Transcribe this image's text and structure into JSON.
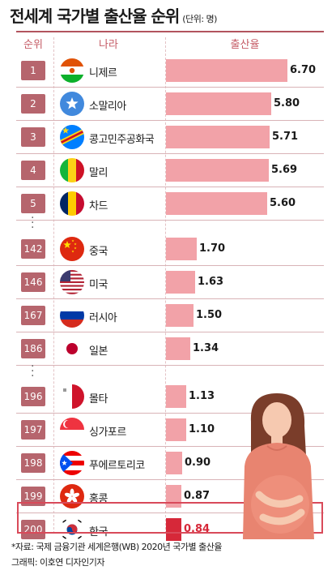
{
  "header": {
    "title": "전세계 국가별 출산율 순위",
    "unit": "(단위: 명)"
  },
  "columns": {
    "rank": "순위",
    "country": "나라",
    "rate": "출산율"
  },
  "chart_data": {
    "type": "bar",
    "title": "전세계 국가별 출산율 순위",
    "unit": "(단위: 명)",
    "xlim": [
      0,
      6.7
    ],
    "groups": [
      [
        {
          "rank": "1",
          "country": "니제르",
          "value_label": "6.70",
          "value": 6.7,
          "flag": "niger-flag"
        },
        {
          "rank": "2",
          "country": "소말리아",
          "value_label": "5.80",
          "value": 5.8,
          "flag": "somalia-flag"
        },
        {
          "rank": "3",
          "country": "콩고민주공화국",
          "value_label": "5.71",
          "value": 5.71,
          "flag": "dr-congo-flag"
        },
        {
          "rank": "4",
          "country": "말리",
          "value_label": "5.69",
          "value": 5.69,
          "flag": "mali-flag"
        },
        {
          "rank": "5",
          "country": "차드",
          "value_label": "5.60",
          "value": 5.6,
          "flag": "chad-flag"
        }
      ],
      [
        {
          "rank": "142",
          "country": "중국",
          "value_label": "1.70",
          "value": 1.7,
          "flag": "china-flag"
        },
        {
          "rank": "146",
          "country": "미국",
          "value_label": "1.63",
          "value": 1.63,
          "flag": "usa-flag"
        },
        {
          "rank": "167",
          "country": "러시아",
          "value_label": "1.50",
          "value": 1.5,
          "flag": "russia-flag"
        },
        {
          "rank": "186",
          "country": "일본",
          "value_label": "1.34",
          "value": 1.34,
          "flag": "japan-flag"
        }
      ],
      [
        {
          "rank": "196",
          "country": "몰타",
          "value_label": "1.13",
          "value": 1.13,
          "flag": "malta-flag"
        },
        {
          "rank": "197",
          "country": "싱가포르",
          "value_label": "1.10",
          "value": 1.1,
          "flag": "singapore-flag"
        },
        {
          "rank": "198",
          "country": "푸에르토리코",
          "value_label": "0.90",
          "value": 0.9,
          "flag": "puerto-rico-flag"
        },
        {
          "rank": "199",
          "country": "홍콩",
          "value_label": "0.87",
          "value": 0.87,
          "flag": "hong-kong-flag"
        },
        {
          "rank": "200",
          "country": "한국",
          "value_label": "0.84",
          "value": 0.84,
          "flag": "south-korea-flag",
          "highlight": true
        }
      ]
    ]
  },
  "colors": {
    "accent": "#b6656d",
    "bar": "#f2a2a8",
    "highlight": "#d62839"
  },
  "footer": {
    "source": "*자료: 국제 금융기관 세계은행(WB) 2020년 국가별 출산율",
    "credit": "그래픽: 이호연 디자인기자"
  }
}
